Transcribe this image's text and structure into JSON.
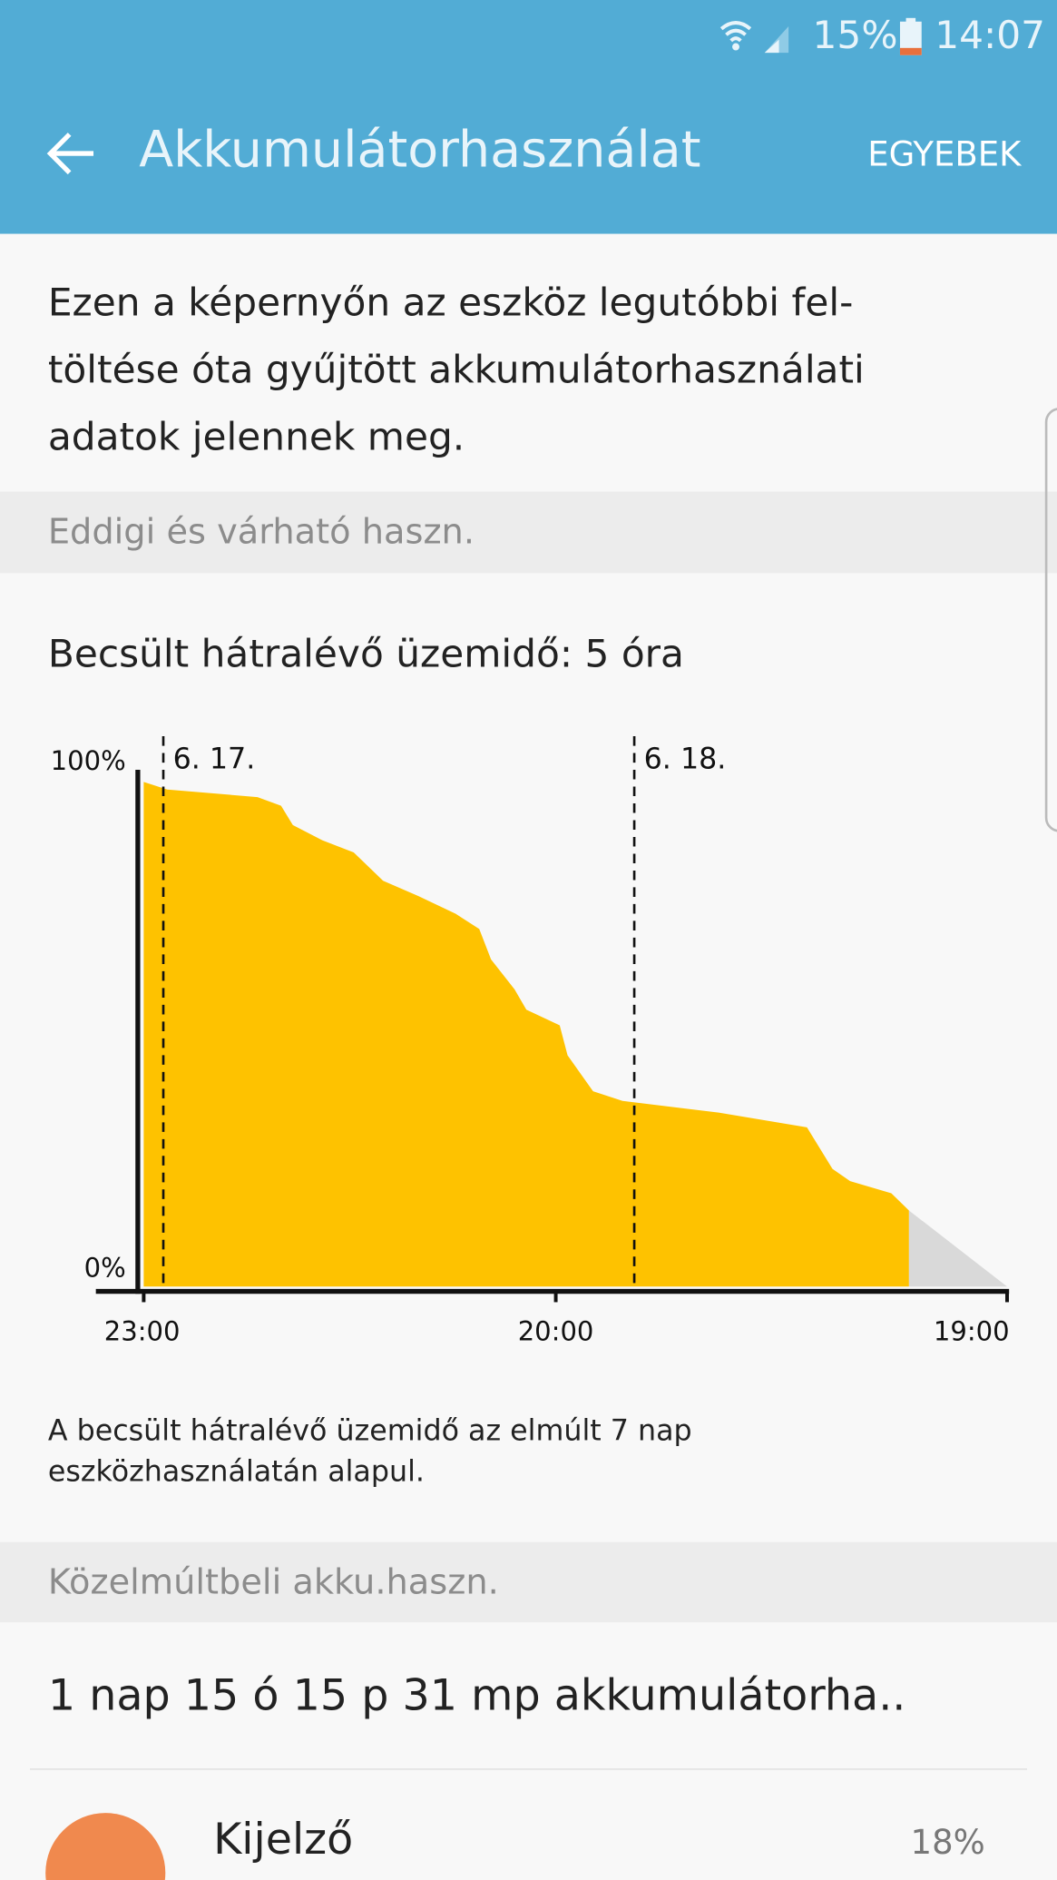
{
  "status_bar": {
    "battery": "15%",
    "time": "14:07"
  },
  "header": {
    "title": "Akkumulátorhasználat",
    "action": "EGYEBEK"
  },
  "intro": [
    "Ezen a képernyőn az eszköz legutóbbi fel-",
    "töltése óta gyűjtött akkumulátorhasználati",
    "adatok jelennek meg."
  ],
  "section_1": {
    "title": "Eddigi és várható haszn.",
    "estimate": "Becsült hátralévő üzemidő: 5 óra",
    "note": [
      "A becsült hátralévő üzemidő az elmúlt 7 nap",
      "eszközhasználatán alapul."
    ]
  },
  "chart_data": {
    "type": "area",
    "xlim": [
      -0.3,
      44.1
    ],
    "xticks": [
      {
        "value": 0,
        "label": "23:00"
      },
      {
        "value": 21,
        "label": "20:00"
      },
      {
        "value": 44,
        "label": "19:00"
      }
    ],
    "ylim": [
      0,
      100
    ],
    "yticks": [
      {
        "value": 0,
        "label": "0%"
      },
      {
        "value": 100,
        "label": "100%"
      }
    ],
    "markers": [
      {
        "x": 1,
        "label": "6. 17."
      },
      {
        "x": 25,
        "label": "6. 18."
      }
    ],
    "series": [
      {
        "color": "#fec200",
        "x": [
          0,
          1.2,
          5.8,
          7.0,
          7.6,
          9.1,
          10.7,
          12.2,
          14.0,
          15.9,
          17.1,
          17.7,
          18.9,
          19.5,
          21.2,
          21.6,
          22.9,
          24.4,
          29.3,
          33.8,
          35.1,
          36.0,
          38.1,
          39.0
        ],
        "values": [
          99.5,
          98,
          96.5,
          94.8,
          91,
          88,
          85.6,
          80,
          77,
          73.5,
          70.5,
          64.5,
          58.6,
          54.6,
          51.5,
          45.6,
          38.5,
          36.6,
          34.3,
          31.4,
          23.2,
          20.8,
          18.4,
          15
        ]
      },
      {
        "color": "#d9d9d9",
        "x": [
          39.0,
          44.0
        ],
        "values": [
          15,
          0
        ]
      }
    ]
  },
  "section_2": {
    "title": "Közelmúltbeli akku.haszn.",
    "total": "1 nap 15 ó 15 p 31 mp akkumulátorha..",
    "items": [
      {
        "name": "Kijelző",
        "percent": "18%"
      }
    ]
  }
}
